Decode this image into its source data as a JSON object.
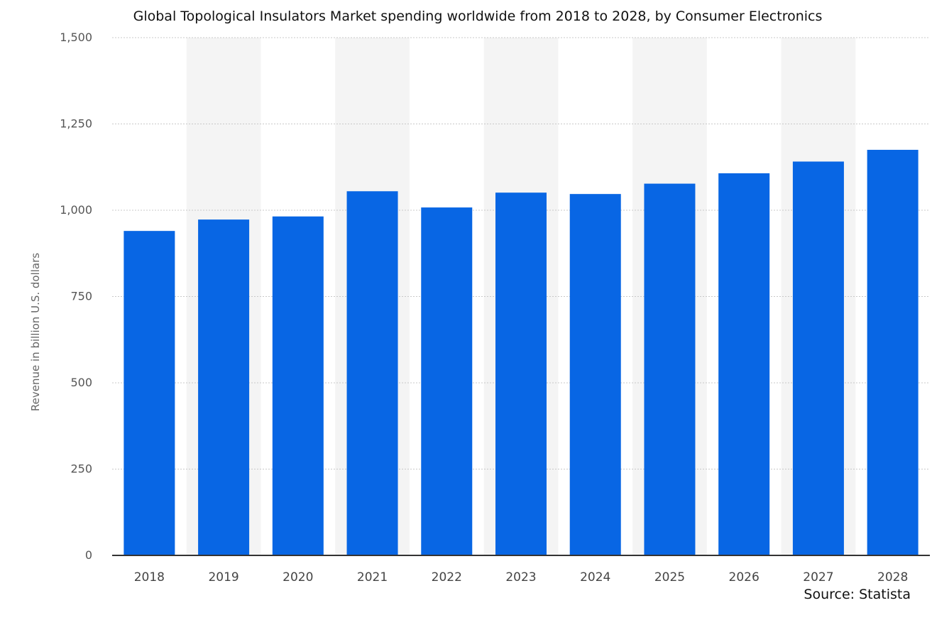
{
  "chart_data": {
    "type": "bar",
    "title": "Global Topological Insulators Market spending worldwide from 2018 to 2028, by Consumer Electronics",
    "xlabel": "",
    "ylabel": "Revenue in billion U.S. dollars",
    "categories": [
      "2018",
      "2019",
      "2020",
      "2021",
      "2022",
      "2023",
      "2024",
      "2025",
      "2026",
      "2027",
      "2028"
    ],
    "values": [
      940,
      973,
      982,
      1055,
      1008,
      1051,
      1047,
      1077,
      1107,
      1141,
      1175
    ],
    "ylim": [
      0,
      1500
    ],
    "yticks": [
      0,
      250,
      500,
      750,
      1000,
      1250,
      1500
    ],
    "ytick_labels": [
      "0",
      "250",
      "500",
      "750",
      "1,000",
      "1,250",
      "1,500"
    ],
    "grid": true,
    "bar_color": "#0866e4",
    "band_color": "#f4f4f4",
    "source": "Source: Statista"
  }
}
